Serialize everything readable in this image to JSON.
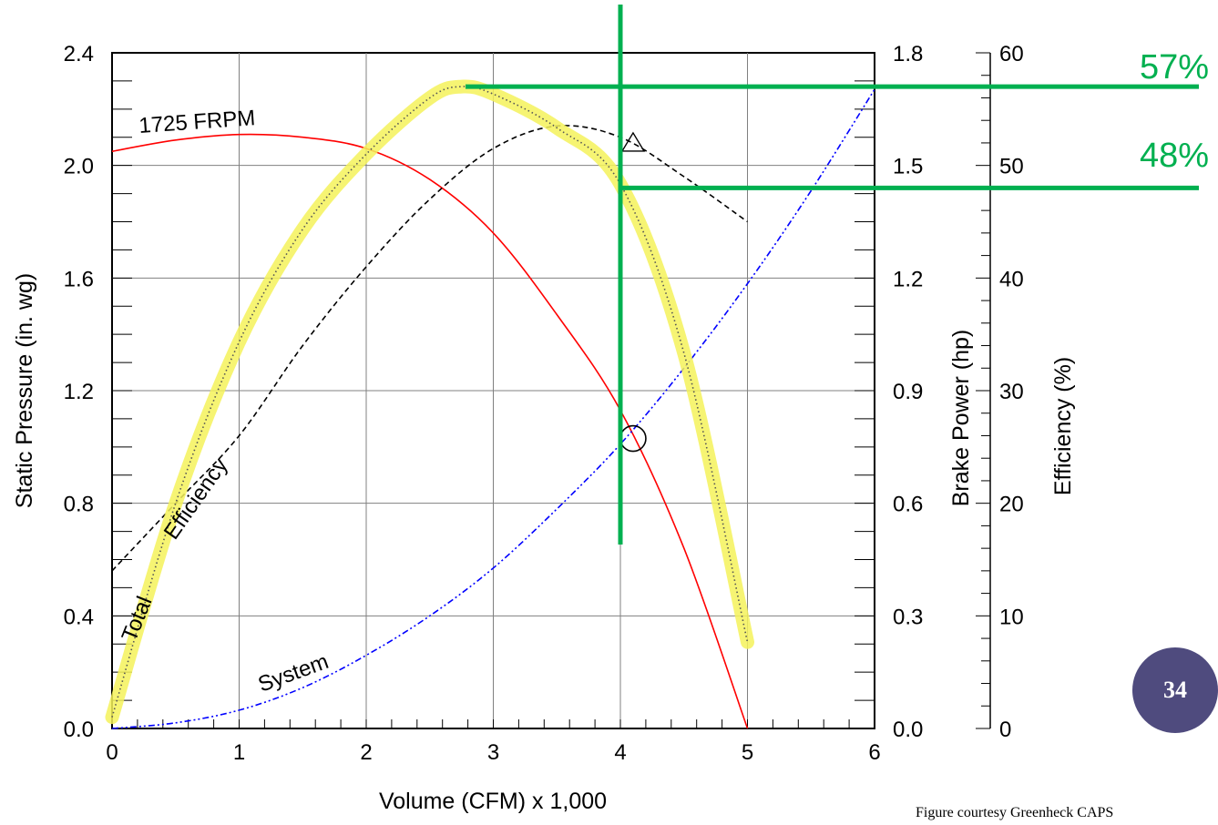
{
  "colors": {
    "pressure_curve": "#ff0000",
    "efficiency_curve": "#000000",
    "system_curve": "#0000ff",
    "brake_power_highlight": "#f5f25a",
    "green_markers": "#00b050",
    "badge": "#4f4b7e"
  },
  "labels": {
    "rpm": "1725  FRPM",
    "total": "Total",
    "efficiency": "Efficiency",
    "system": "System",
    "eff_high": "57%",
    "eff_low": "48%"
  },
  "page_badge": "34",
  "credit": "Figure courtesy Greenheck CAPS",
  "chart_data": {
    "type": "line",
    "xlabel": "Volume (CFM) x 1,000",
    "ylabel": "Static Pressure (in. wg)",
    "y2label": "Brake Power (hp)",
    "y3label": "Efficiency (%)",
    "xlim": [
      0,
      6
    ],
    "ylim": [
      0,
      2.4
    ],
    "y2lim": [
      0,
      1.8
    ],
    "y3lim": [
      0,
      60
    ],
    "x_ticks": [
      "0",
      "1",
      "2",
      "3",
      "4",
      "5",
      "6"
    ],
    "y_ticks": [
      "0.0",
      "0.4",
      "0.8",
      "1.2",
      "1.6",
      "2.0",
      "2.4"
    ],
    "y2_ticks": [
      "0.0",
      "0.3",
      "0.6",
      "0.9",
      "1.2",
      "1.5",
      "1.8"
    ],
    "y3_ticks": [
      "0",
      "10",
      "20",
      "30",
      "40",
      "50",
      "60"
    ],
    "grid": true,
    "series": [
      {
        "name": "1725 FRPM",
        "axis": "pressure",
        "x": [
          0,
          0.5,
          1,
          1.5,
          2,
          2.5,
          3,
          3.5,
          4,
          4.5,
          5
        ],
        "y": [
          2.05,
          2.09,
          2.11,
          2.1,
          2.06,
          1.95,
          1.76,
          1.47,
          1.13,
          0.64,
          0
        ]
      },
      {
        "name": "Total Efficiency",
        "axis": "efficiency",
        "x": [
          0,
          0.5,
          1,
          1.5,
          2,
          2.5,
          3,
          3.5,
          4,
          4.5,
          5
        ],
        "y": [
          14,
          20,
          26,
          34,
          41,
          47,
          51.5,
          53.5,
          52.5,
          49,
          45
        ]
      },
      {
        "name": "System",
        "axis": "pressure",
        "x": [
          0,
          0.5,
          1,
          1.5,
          2,
          2.5,
          3,
          3.5,
          4,
          4.5,
          5,
          5.5,
          6
        ],
        "y": [
          0,
          0.02,
          0.065,
          0.145,
          0.26,
          0.4,
          0.57,
          0.78,
          1.01,
          1.28,
          1.58,
          1.91,
          2.27
        ]
      },
      {
        "name": "Brake Power",
        "axis": "power",
        "x": [
          0,
          0.5,
          1,
          1.5,
          2,
          2.5,
          2.75,
          3,
          3.5,
          4,
          4.5,
          5
        ],
        "y": [
          0.03,
          0.6,
          1.03,
          1.33,
          1.53,
          1.68,
          1.71,
          1.69,
          1.6,
          1.45,
          1.0,
          0.23
        ]
      }
    ],
    "operating_point": {
      "x": 4.1,
      "pressure": 1.03
    },
    "efficiency_marker": {
      "x": 4.1,
      "efficiency": 52
    },
    "reference_lines": {
      "x": 4.0,
      "efficiency_high": 57,
      "efficiency_low": 48
    }
  }
}
